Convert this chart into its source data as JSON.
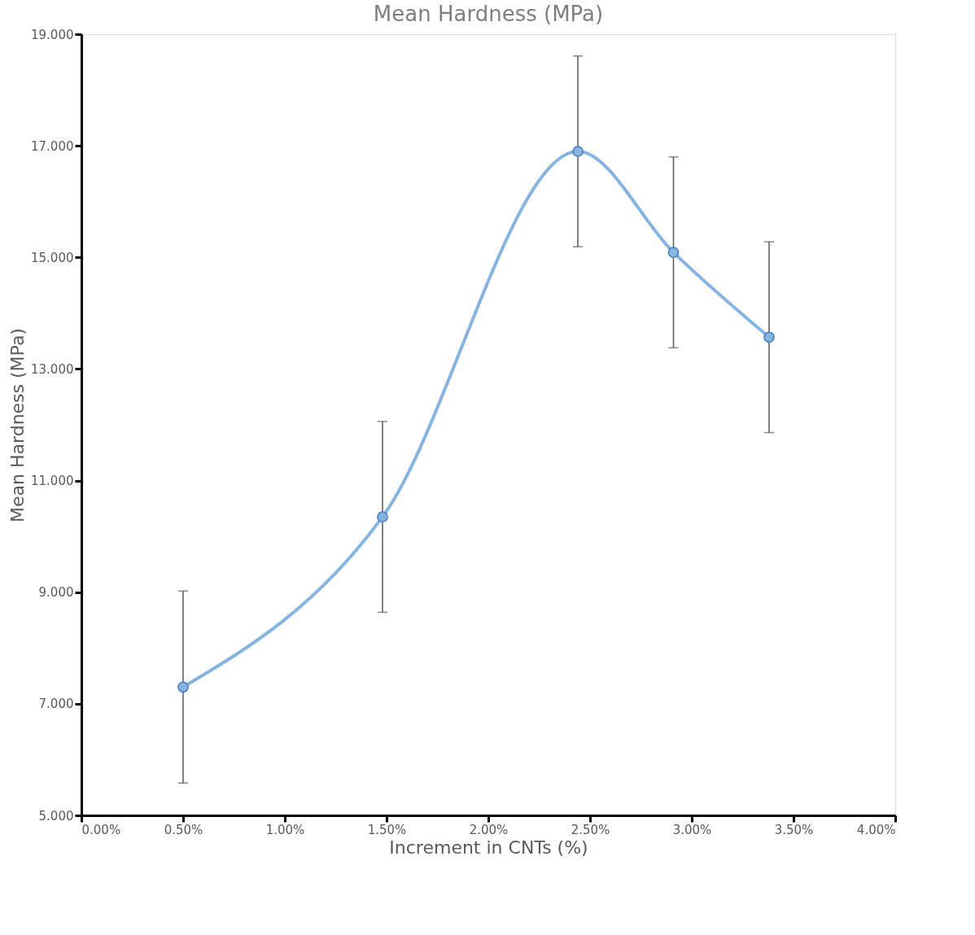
{
  "chart_data": {
    "type": "line",
    "title": "Mean Hardness (MPa)",
    "xlabel": "Increment in CNTs (%)",
    "ylabel": "Mean Hardness (MPa)",
    "x": [
      0.5,
      1.48,
      2.44,
      2.91,
      3.38
    ],
    "series": [
      {
        "color": "#85b4e0",
        "values": [
          7.3,
          10.35,
          16.9,
          15.09,
          13.57
        ],
        "errors": [
          1.72,
          1.71,
          1.71,
          1.71,
          1.71
        ]
      }
    ],
    "marker": "circle",
    "line_style": "solid",
    "grid": false,
    "xlim": [
      0,
      4
    ],
    "ylim": [
      5,
      19
    ],
    "xticks": [
      {
        "value": 0,
        "label": "0.00%"
      },
      {
        "value": 0.5,
        "label": "0.50%"
      },
      {
        "value": 1,
        "label": "1.00%"
      },
      {
        "value": 1.5,
        "label": "1.50%"
      },
      {
        "value": 2,
        "label": "2.00%"
      },
      {
        "value": 2.5,
        "label": "2.50%"
      },
      {
        "value": 3,
        "label": "3.00%"
      },
      {
        "value": 3.5,
        "label": "3.50%"
      },
      {
        "value": 4,
        "label": "4.00%"
      }
    ],
    "yticks": [
      {
        "value": 5,
        "label": "5.000"
      },
      {
        "value": 7,
        "label": "7.000"
      },
      {
        "value": 9,
        "label": "9.000"
      },
      {
        "value": 11,
        "label": "11.000"
      },
      {
        "value": 13,
        "label": "13.000"
      },
      {
        "value": 15,
        "label": "15.000"
      },
      {
        "value": 17,
        "label": "17.000"
      },
      {
        "value": 19,
        "label": "19.000"
      }
    ]
  }
}
